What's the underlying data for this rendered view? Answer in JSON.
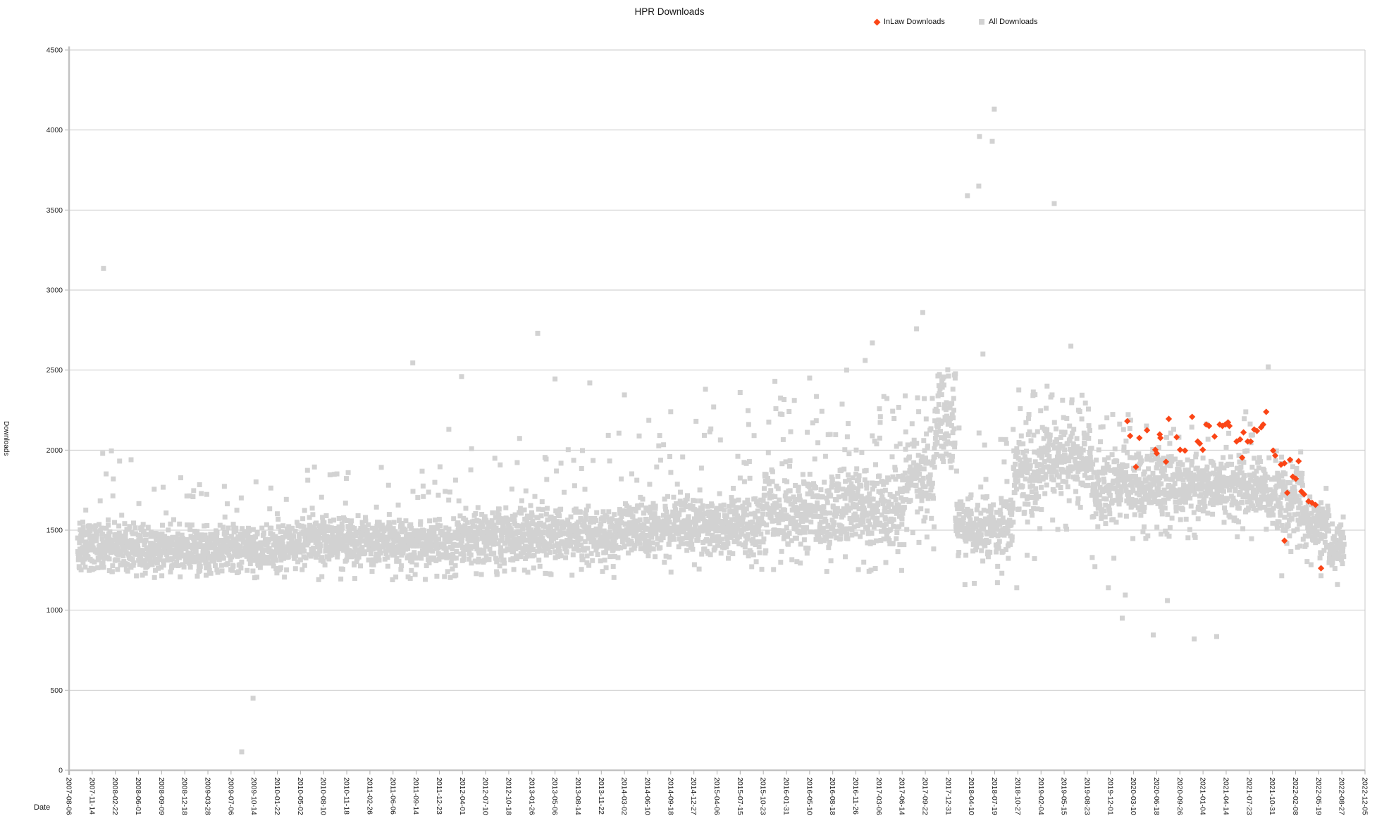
{
  "title": "HPR Downloads",
  "legend": [
    {
      "label": "InLaw Downloads",
      "marker": "diamond",
      "color": "#fb4516"
    },
    {
      "label": "All Downloads",
      "marker": "square",
      "color": "#d2d2d2"
    }
  ],
  "colors": {
    "inlaw": "#fb4516",
    "all": "#d2d2d2",
    "grid": "#c9c9c9",
    "axis": "#c2c2c2",
    "tick": "#b0b0b0",
    "text": "#1c1c1c",
    "background": "#ffffff"
  },
  "chart_data": {
    "type": "scatter",
    "title": "HPR Downloads",
    "xlabel": "Date",
    "ylabel": "Downloads",
    "grid": "horizontal",
    "legend_position": "top-right",
    "x_axis": {
      "epoch": "2007-08-06",
      "unit": "days since epoch",
      "tick_step_days": 100,
      "tick_labels": [
        "2007-08-06",
        "2007-11-14",
        "2008-02-22",
        "2008-06-01",
        "2008-09-09",
        "2008-12-18",
        "2009-03-28",
        "2009-07-06",
        "2009-10-14",
        "2010-01-22",
        "2010-05-02",
        "2010-08-10",
        "2010-11-18",
        "2011-02-26",
        "2011-06-06",
        "2011-09-14",
        "2011-12-23",
        "2012-04-01",
        "2012-07-10",
        "2012-10-18",
        "2013-01-26",
        "2013-05-06",
        "2013-08-14",
        "2013-11-22",
        "2014-03-02",
        "2014-06-10",
        "2014-09-18",
        "2014-12-27",
        "2015-04-06",
        "2015-07-15",
        "2015-10-23",
        "2016-01-31",
        "2016-05-10",
        "2016-08-18",
        "2016-11-26",
        "2017-03-06",
        "2017-06-14",
        "2017-09-22",
        "2017-12-31",
        "2018-04-10",
        "2018-07-19",
        "2018-10-27",
        "2019-02-04",
        "2019-05-15",
        "2019-08-23",
        "2019-12-01",
        "2020-03-10",
        "2020-06-18",
        "2020-09-26",
        "2021-01-04",
        "2021-04-14",
        "2021-07-23",
        "2021-10-31",
        "2022-02-08",
        "2022-05-19",
        "2022-08-27",
        "2022-12-05"
      ]
    },
    "y_axis": {
      "min": 0,
      "max": 4500,
      "tick_step": 500,
      "tick_labels": [
        "0",
        "500",
        "1000",
        "1500",
        "2000",
        "2500",
        "3000",
        "3500",
        "4000",
        "4500"
      ]
    },
    "series": [
      {
        "name": "InLaw Downloads",
        "marker": "diamond",
        "color": "#fb4516",
        "x_unit": "days_since_epoch",
        "points": [
          [
            4573,
            2181
          ],
          [
            4585,
            2089
          ],
          [
            4610,
            1895
          ],
          [
            4625,
            2076
          ],
          [
            4658,
            2124
          ],
          [
            4694,
            2002
          ],
          [
            4700,
            1980
          ],
          [
            4713,
            2098
          ],
          [
            4716,
            2076
          ],
          [
            4740,
            1927
          ],
          [
            4752,
            2195
          ],
          [
            4786,
            2081
          ],
          [
            4801,
            2002
          ],
          [
            4822,
            1997
          ],
          [
            4853,
            2208
          ],
          [
            4877,
            2054
          ],
          [
            4886,
            2041
          ],
          [
            4899,
            2002
          ],
          [
            4914,
            2160
          ],
          [
            4926,
            2151
          ],
          [
            4950,
            2085
          ],
          [
            4972,
            2160
          ],
          [
            4984,
            2151
          ],
          [
            4996,
            2160
          ],
          [
            5008,
            2173
          ],
          [
            5014,
            2151
          ],
          [
            5045,
            2054
          ],
          [
            5060,
            2067
          ],
          [
            5069,
            1953
          ],
          [
            5075,
            2111
          ],
          [
            5093,
            2054
          ],
          [
            5106,
            2054
          ],
          [
            5121,
            2129
          ],
          [
            5133,
            2120
          ],
          [
            5151,
            2142
          ],
          [
            5160,
            2160
          ],
          [
            5173,
            2239
          ],
          [
            5203,
            1997
          ],
          [
            5212,
            1966
          ],
          [
            5237,
            1909
          ],
          [
            5252,
            1918
          ],
          [
            5252,
            1434
          ],
          [
            5264,
            1733
          ],
          [
            5276,
            1940
          ],
          [
            5288,
            1834
          ],
          [
            5301,
            1821
          ],
          [
            5313,
            1931
          ],
          [
            5325,
            1742
          ],
          [
            5337,
            1724
          ],
          [
            5356,
            1680
          ],
          [
            5371,
            1671
          ],
          [
            5386,
            1658
          ],
          [
            5410,
            1262
          ]
        ]
      },
      {
        "name": "All Downloads",
        "marker": "square",
        "color": "#d2d2d2",
        "x_unit": "days_since_epoch",
        "note": "Approximately one point per day 2007-09 to 2022-08 (~5400 points), too dense to enumerate; band envelope read from chart and reconstructed deterministically.",
        "band_segments": [
          {
            "d0": 37,
            "d1": 250,
            "center": 1400,
            "spread": 170,
            "tail_max": 2000,
            "tail_p": 0.05,
            "low": 1240
          },
          {
            "d0": 250,
            "d1": 1000,
            "center": 1390,
            "spread": 160,
            "tail_max": 1830,
            "tail_p": 0.04,
            "low": 1200
          },
          {
            "d0": 1000,
            "d1": 1700,
            "center": 1430,
            "spread": 170,
            "tail_max": 1900,
            "tail_p": 0.05,
            "low": 1190
          },
          {
            "d0": 1700,
            "d1": 2400,
            "center": 1470,
            "spread": 190,
            "tail_max": 2130,
            "tail_p": 0.06,
            "low": 1200
          },
          {
            "d0": 2400,
            "d1": 3000,
            "center": 1520,
            "spread": 210,
            "tail_max": 2280,
            "tail_p": 0.07,
            "low": 1230
          },
          {
            "d0": 3000,
            "d1": 3600,
            "center": 1620,
            "spread": 280,
            "tail_max": 2360,
            "tail_p": 0.1,
            "low": 1240
          },
          {
            "d0": 3600,
            "d1": 3740,
            "center": 1800,
            "spread": 290,
            "tail_max": 2480,
            "tail_p": 0.12,
            "low": 1300
          },
          {
            "d0": 3740,
            "d1": 3830,
            "center": 2130,
            "spread": 330,
            "tail_max": 2520,
            "tail_p": 0.18,
            "low": 1500
          },
          {
            "d0": 3830,
            "d1": 4080,
            "center": 1520,
            "spread": 220,
            "tail_max": 2150,
            "tail_p": 0.05,
            "low": 1150
          },
          {
            "d0": 4080,
            "d1": 4200,
            "center": 1850,
            "spread": 330,
            "tail_max": 2380,
            "tail_p": 0.08,
            "low": 1280
          },
          {
            "d0": 4200,
            "d1": 4420,
            "center": 1950,
            "spread": 280,
            "tail_max": 2360,
            "tail_p": 0.08,
            "low": 1480
          },
          {
            "d0": 4420,
            "d1": 4560,
            "center": 1760,
            "spread": 280,
            "tail_max": 2260,
            "tail_p": 0.06,
            "low": 1250
          },
          {
            "d0": 4560,
            "d1": 5180,
            "center": 1760,
            "spread": 230,
            "tail_max": 2240,
            "tail_p": 0.06,
            "low": 1430
          },
          {
            "d0": 5180,
            "d1": 5330,
            "center": 1680,
            "spread": 230,
            "tail_max": 2030,
            "tail_p": 0.04,
            "low": 1340
          },
          {
            "d0": 5330,
            "d1": 5445,
            "center": 1530,
            "spread": 200,
            "tail_max": 1820,
            "tail_p": 0.03,
            "low": 1250
          },
          {
            "d0": 5445,
            "d1": 5510,
            "center": 1400,
            "spread": 150,
            "tail_max": 1600,
            "tail_p": 0.02,
            "low": 1240
          }
        ],
        "outliers": [
          [
            149,
            3135
          ],
          [
            183,
            1995
          ],
          [
            268,
            1940
          ],
          [
            746,
            115
          ],
          [
            795,
            450
          ],
          [
            1485,
            2545
          ],
          [
            1641,
            2130
          ],
          [
            1696,
            2460
          ],
          [
            2025,
            2730
          ],
          [
            2100,
            2445
          ],
          [
            2250,
            2420
          ],
          [
            2400,
            2345
          ],
          [
            2600,
            2240
          ],
          [
            2750,
            2380
          ],
          [
            2900,
            2360
          ],
          [
            3050,
            2430
          ],
          [
            3200,
            2450
          ],
          [
            3360,
            2500
          ],
          [
            3440,
            2560
          ],
          [
            3471,
            2670
          ],
          [
            3662,
            2758
          ],
          [
            3689,
            2860
          ],
          [
            3882,
            3590
          ],
          [
            3931,
            3650
          ],
          [
            3934,
            3960
          ],
          [
            3949,
            2600
          ],
          [
            3989,
            3930
          ],
          [
            3998,
            4130
          ],
          [
            4095,
            1140
          ],
          [
            4226,
            2400
          ],
          [
            4257,
            3540
          ],
          [
            4329,
            2650
          ],
          [
            4491,
            1140
          ],
          [
            4564,
            1095
          ],
          [
            4551,
            950
          ],
          [
            4685,
            845
          ],
          [
            4746,
            1060
          ],
          [
            4862,
            820
          ],
          [
            4959,
            835
          ],
          [
            5182,
            2520
          ],
          [
            5240,
            1215
          ],
          [
            5410,
            1215
          ],
          [
            5481,
            1160
          ]
        ]
      }
    ]
  }
}
